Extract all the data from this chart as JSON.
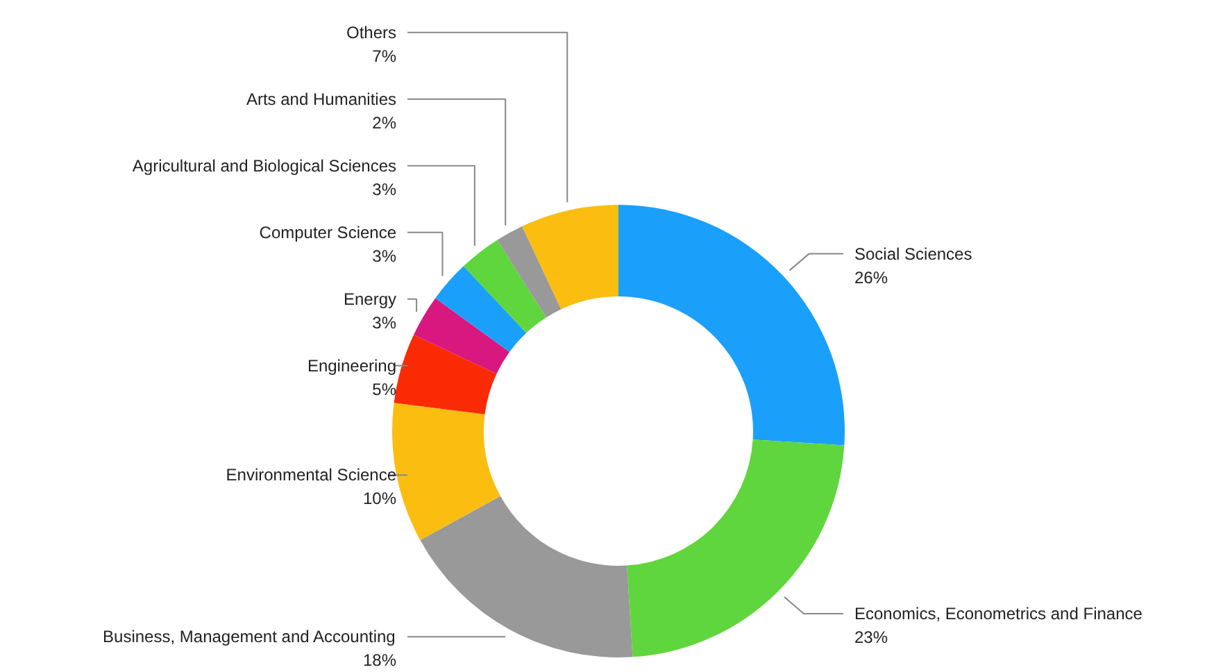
{
  "chart_data": {
    "type": "donut",
    "categories": [
      "Social Sciences",
      "Economics, Econometrics and Finance",
      "Business, Management and Accounting",
      "Environmental Science",
      "Engineering",
      "Energy",
      "Computer Science",
      "Agricultural and Biological Sciences",
      "Arts and Humanities",
      "Others"
    ],
    "values": [
      26,
      23,
      18,
      10,
      5,
      3,
      3,
      3,
      2,
      7
    ],
    "value_labels": [
      "26%",
      "23%",
      "18%",
      "10%",
      "5%",
      "3%",
      "3%",
      "3%",
      "2%",
      "7%"
    ],
    "colors": [
      "#1aa0fa",
      "#5fd63d",
      "#999999",
      "#fbbd10",
      "#fa2a05",
      "#d8177f",
      "#1aa0fa",
      "#5fd63d",
      "#999999",
      "#fbbd10"
    ]
  }
}
